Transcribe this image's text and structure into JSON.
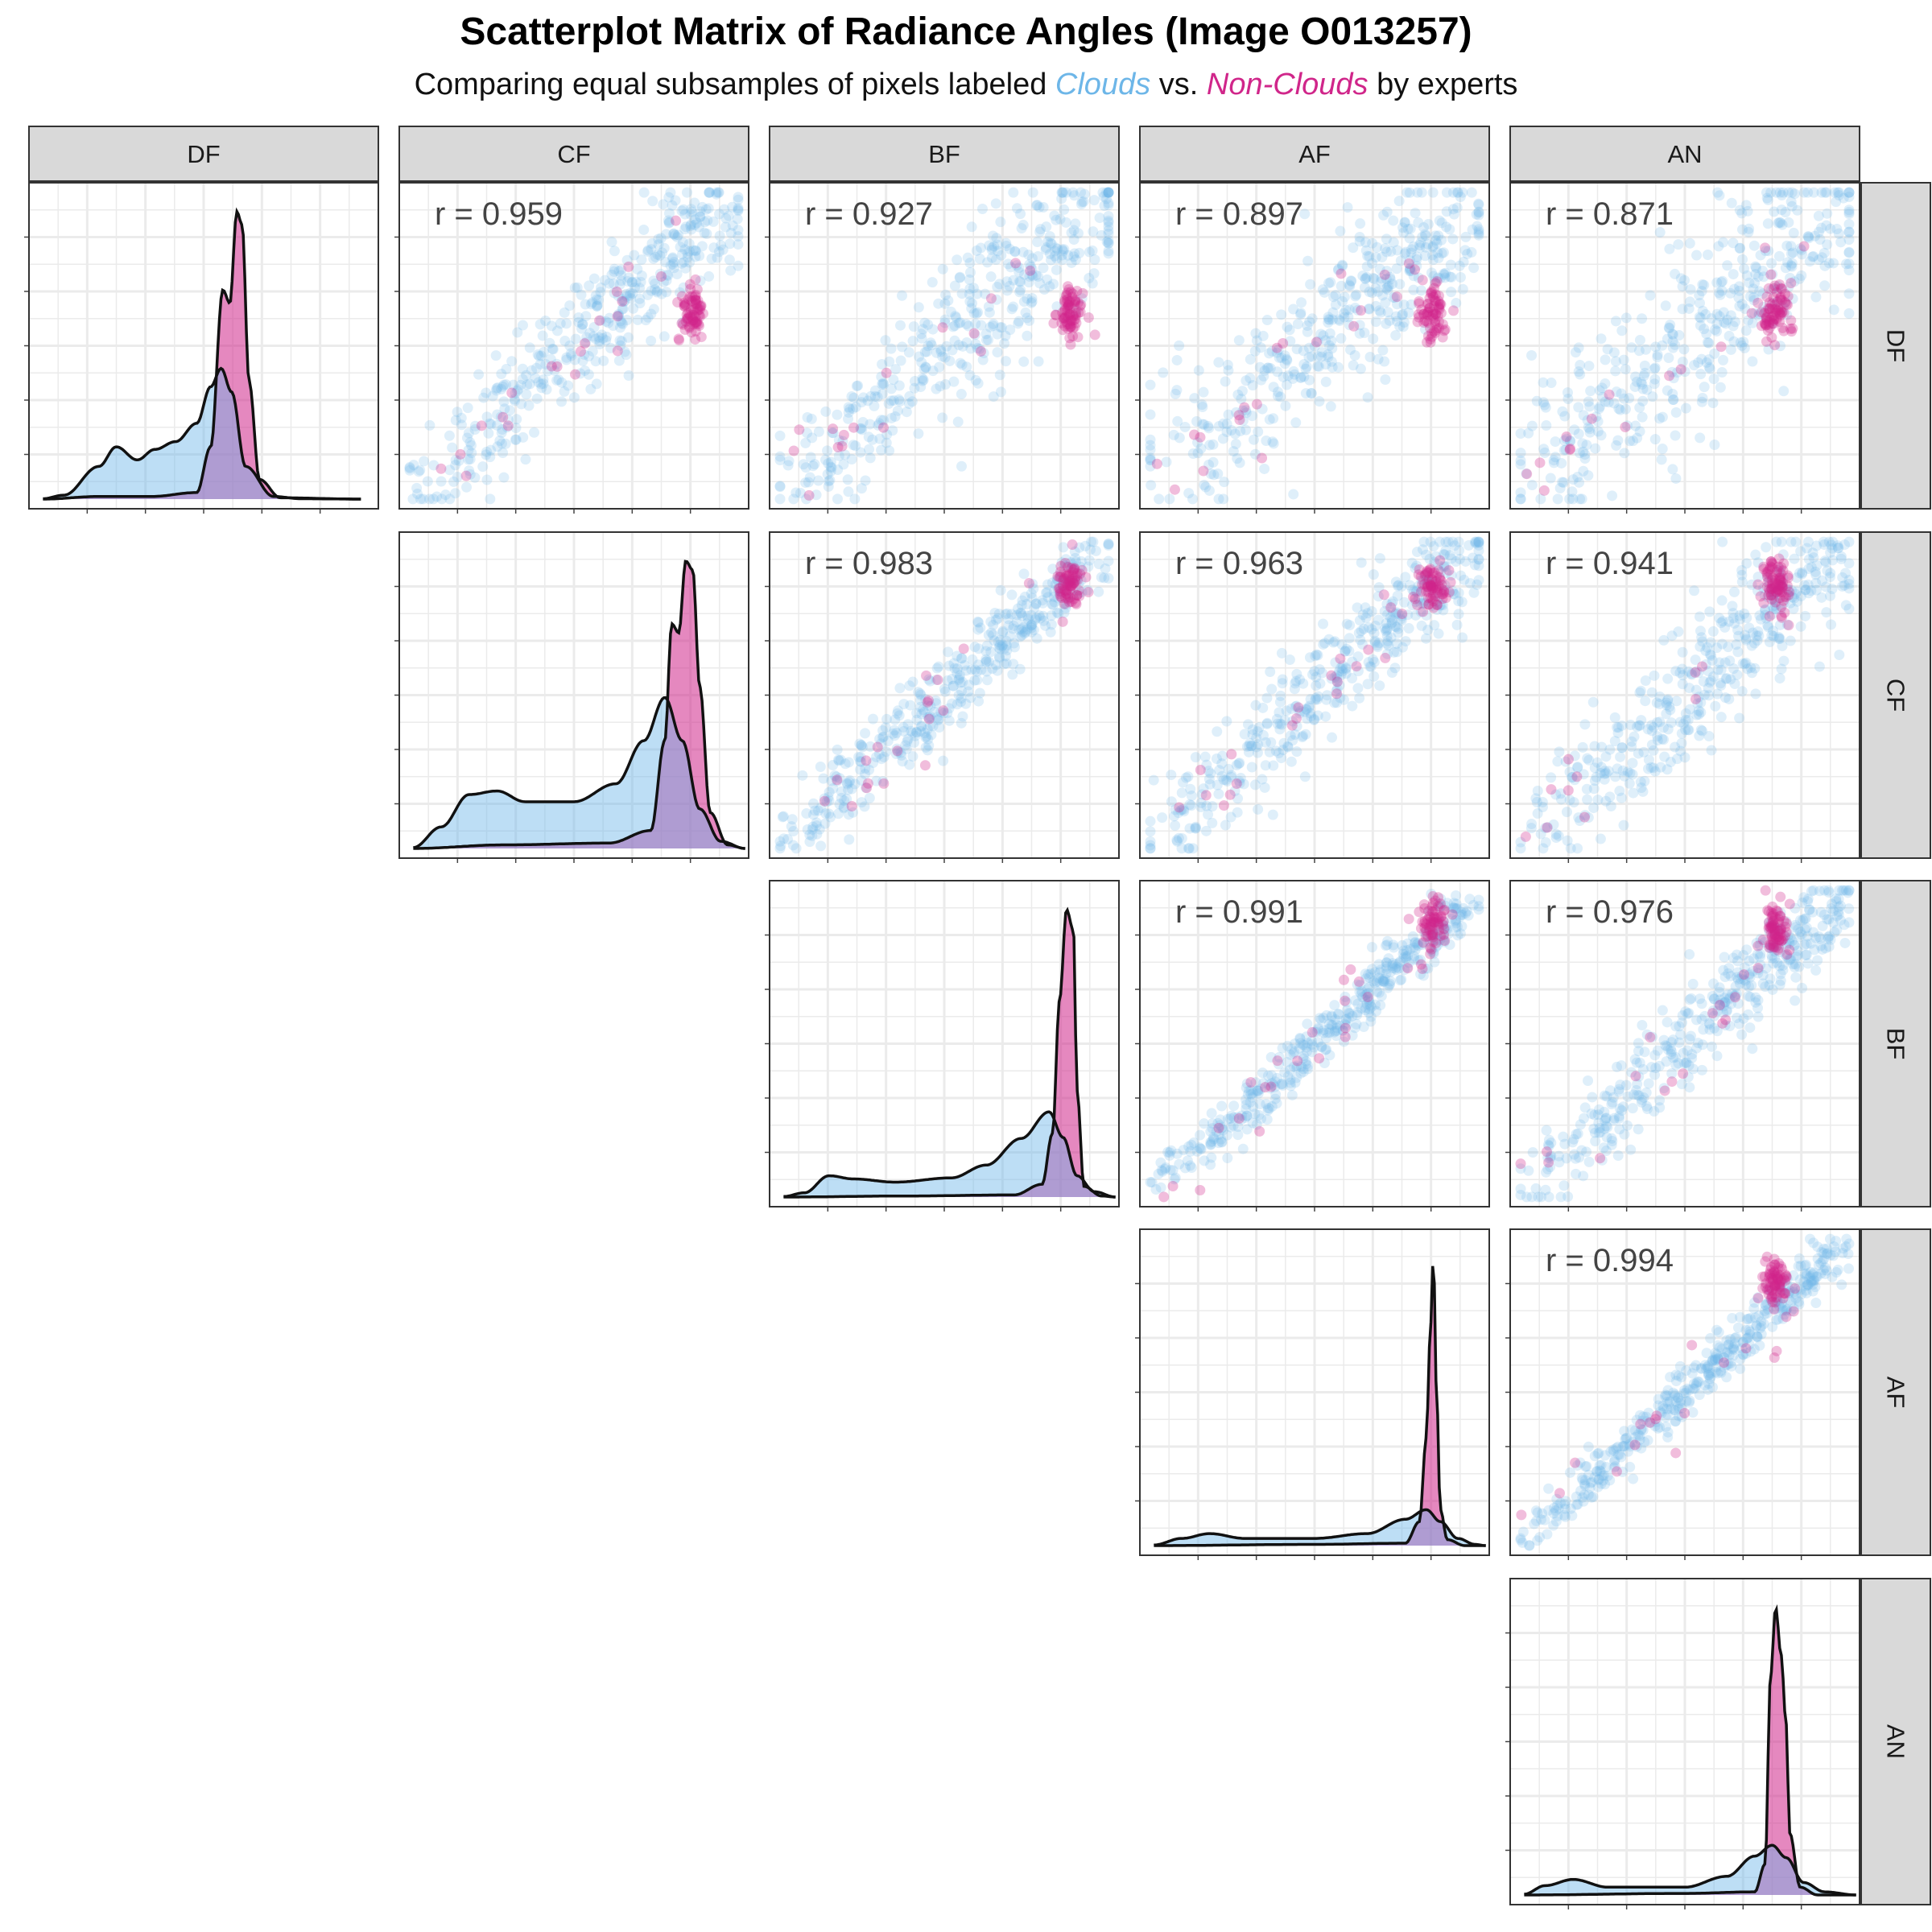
{
  "title": "Scatterplot Matrix of Radiance Angles (Image O013257)",
  "subtitle": {
    "prefix": "Comparing equal subsamples of pixels labeled ",
    "clouds": "Clouds",
    "middle": " vs. ",
    "nonclouds": "Non-Clouds",
    "suffix": " by experts"
  },
  "colors": {
    "clouds": "#6db6e8",
    "nonclouds": "#d0268a",
    "strip": "#d9d9d9",
    "grid": "#ebebeb"
  },
  "chart_data": {
    "type": "scatter",
    "variables": [
      "DF",
      "CF",
      "BF",
      "AF",
      "AN"
    ],
    "series": [
      {
        "name": "Clouds",
        "color": "#6db6e8"
      },
      {
        "name": "Non-Clouds",
        "color": "#d0268a"
      }
    ],
    "correlations": [
      {
        "row": "DF",
        "col": "CF",
        "label": "r = 0.959",
        "r": 0.959
      },
      {
        "row": "DF",
        "col": "BF",
        "label": "r = 0.927",
        "r": 0.927
      },
      {
        "row": "DF",
        "col": "AF",
        "label": "r = 0.897",
        "r": 0.897
      },
      {
        "row": "DF",
        "col": "AN",
        "label": "r = 0.871",
        "r": 0.871
      },
      {
        "row": "CF",
        "col": "BF",
        "label": "r = 0.983",
        "r": 0.983
      },
      {
        "row": "CF",
        "col": "AF",
        "label": "r = 0.963",
        "r": 0.963
      },
      {
        "row": "CF",
        "col": "AN",
        "label": "r = 0.941",
        "r": 0.941
      },
      {
        "row": "BF",
        "col": "AF",
        "label": "r = 0.991",
        "r": 0.991
      },
      {
        "row": "BF",
        "col": "AN",
        "label": "r = 0.976",
        "r": 0.976
      },
      {
        "row": "AF",
        "col": "AN",
        "label": "r = 0.994",
        "r": 0.994
      }
    ],
    "density": [
      {
        "var": "DF",
        "clouds": [
          [
            0.04,
            0.003
          ],
          [
            0.1,
            0.03
          ],
          [
            0.2,
            0.25
          ],
          [
            0.25,
            0.4
          ],
          [
            0.31,
            0.3
          ],
          [
            0.36,
            0.38
          ],
          [
            0.42,
            0.44
          ],
          [
            0.48,
            0.58
          ],
          [
            0.52,
            0.86
          ],
          [
            0.55,
            1.0
          ],
          [
            0.58,
            0.82
          ],
          [
            0.62,
            0.25
          ],
          [
            0.7,
            0.02
          ],
          [
            0.78,
            0.003
          ],
          [
            0.95,
            0.0
          ]
        ],
        "nonclouds": [
          [
            0.04,
            0.0
          ],
          [
            0.2,
            0.02
          ],
          [
            0.35,
            0.02
          ],
          [
            0.48,
            0.05
          ],
          [
            0.52,
            0.4
          ],
          [
            0.555,
            1.6
          ],
          [
            0.575,
            1.5
          ],
          [
            0.595,
            2.2
          ],
          [
            0.61,
            2.1
          ],
          [
            0.63,
            0.9
          ],
          [
            0.66,
            0.15
          ],
          [
            0.72,
            0.01
          ],
          [
            0.95,
            0.0
          ]
        ]
      },
      {
        "var": "CF",
        "clouds": [
          [
            0.04,
            0.005
          ],
          [
            0.12,
            0.12
          ],
          [
            0.2,
            0.3
          ],
          [
            0.28,
            0.32
          ],
          [
            0.36,
            0.26
          ],
          [
            0.5,
            0.26
          ],
          [
            0.62,
            0.36
          ],
          [
            0.7,
            0.6
          ],
          [
            0.76,
            0.84
          ],
          [
            0.81,
            0.6
          ],
          [
            0.86,
            0.22
          ],
          [
            0.92,
            0.04
          ],
          [
            0.99,
            0.0
          ]
        ],
        "nonclouds": [
          [
            0.04,
            0.0
          ],
          [
            0.3,
            0.02
          ],
          [
            0.6,
            0.03
          ],
          [
            0.72,
            0.1
          ],
          [
            0.76,
            0.6
          ],
          [
            0.78,
            1.25
          ],
          [
            0.8,
            1.2
          ],
          [
            0.82,
            1.6
          ],
          [
            0.84,
            1.55
          ],
          [
            0.86,
            0.9
          ],
          [
            0.89,
            0.2
          ],
          [
            0.94,
            0.02
          ],
          [
            0.99,
            0.0
          ]
        ]
      },
      {
        "var": "BF",
        "clouds": [
          [
            0.04,
            0.005
          ],
          [
            0.1,
            0.04
          ],
          [
            0.17,
            0.2
          ],
          [
            0.24,
            0.17
          ],
          [
            0.36,
            0.14
          ],
          [
            0.52,
            0.18
          ],
          [
            0.62,
            0.3
          ],
          [
            0.72,
            0.55
          ],
          [
            0.8,
            0.8
          ],
          [
            0.84,
            0.56
          ],
          [
            0.88,
            0.2
          ],
          [
            0.93,
            0.05
          ],
          [
            0.99,
            0.0
          ]
        ],
        "nonclouds": [
          [
            0.04,
            0.0
          ],
          [
            0.4,
            0.01
          ],
          [
            0.7,
            0.02
          ],
          [
            0.78,
            0.12
          ],
          [
            0.81,
            0.6
          ],
          [
            0.83,
            1.85
          ],
          [
            0.85,
            2.7
          ],
          [
            0.87,
            2.5
          ],
          [
            0.88,
            1.0
          ],
          [
            0.9,
            0.1
          ],
          [
            0.95,
            0.01
          ],
          [
            0.99,
            0.0
          ]
        ]
      },
      {
        "var": "AF",
        "clouds": [
          [
            0.04,
            0.005
          ],
          [
            0.12,
            0.06
          ],
          [
            0.2,
            0.1
          ],
          [
            0.3,
            0.06
          ],
          [
            0.5,
            0.06
          ],
          [
            0.65,
            0.1
          ],
          [
            0.76,
            0.22
          ],
          [
            0.82,
            0.3
          ],
          [
            0.86,
            0.2
          ],
          [
            0.91,
            0.06
          ],
          [
            0.96,
            0.01
          ],
          [
            0.99,
            0.0
          ]
        ],
        "nonclouds": [
          [
            0.04,
            0.0
          ],
          [
            0.5,
            0.01
          ],
          [
            0.76,
            0.02
          ],
          [
            0.8,
            0.2
          ],
          [
            0.82,
            0.9
          ],
          [
            0.83,
            1.7
          ],
          [
            0.84,
            2.4
          ],
          [
            0.85,
            1.2
          ],
          [
            0.86,
            0.3
          ],
          [
            0.88,
            0.05
          ],
          [
            0.93,
            0.0
          ],
          [
            0.99,
            0.0
          ]
        ]
      },
      {
        "var": "AN",
        "clouds": [
          [
            0.04,
            0.005
          ],
          [
            0.1,
            0.06
          ],
          [
            0.18,
            0.1
          ],
          [
            0.28,
            0.05
          ],
          [
            0.5,
            0.05
          ],
          [
            0.62,
            0.12
          ],
          [
            0.7,
            0.25
          ],
          [
            0.75,
            0.32
          ],
          [
            0.79,
            0.24
          ],
          [
            0.84,
            0.08
          ],
          [
            0.9,
            0.02
          ],
          [
            0.99,
            0.0
          ]
        ],
        "nonclouds": [
          [
            0.04,
            0.0
          ],
          [
            0.5,
            0.01
          ],
          [
            0.7,
            0.02
          ],
          [
            0.73,
            0.2
          ],
          [
            0.745,
            1.4
          ],
          [
            0.76,
            1.85
          ],
          [
            0.775,
            1.55
          ],
          [
            0.79,
            1.1
          ],
          [
            0.8,
            0.4
          ],
          [
            0.83,
            0.05
          ],
          [
            0.88,
            0.0
          ],
          [
            0.99,
            0.0
          ]
        ]
      }
    ]
  }
}
